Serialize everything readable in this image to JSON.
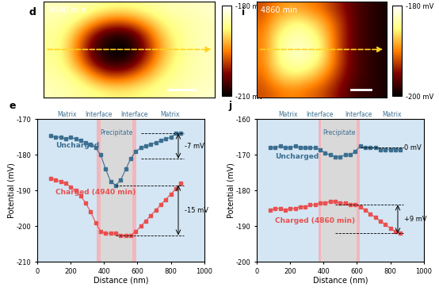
{
  "chart_data": [
    {
      "type": "heatmap",
      "panel": "d",
      "title": "4940 min",
      "tick_labels": false,
      "cells": [
        [
          -184,
          -184,
          -185,
          -186,
          -187,
          -187,
          -186,
          -185,
          -184,
          -184,
          -183
        ],
        [
          -185,
          -186,
          -189,
          -194,
          -197,
          -196,
          -192,
          -188,
          -186,
          -185,
          -184
        ],
        [
          -186,
          -188,
          -196,
          -205,
          -209,
          -208,
          -200,
          -191,
          -187,
          -185,
          -184
        ],
        [
          -186,
          -189,
          -199,
          -208,
          -210,
          -210,
          -203,
          -193,
          -188,
          -185,
          -184
        ],
        [
          -186,
          -188,
          -196,
          -205,
          -209,
          -207,
          -199,
          -191,
          -187,
          -185,
          -184
        ],
        [
          -185,
          -186,
          -189,
          -195,
          -198,
          -196,
          -192,
          -188,
          -186,
          -185,
          -184
        ],
        [
          -184,
          -185,
          -186,
          -187,
          -188,
          -188,
          -187,
          -186,
          -185,
          -184,
          -183
        ]
      ],
      "colorbar": {
        "range": [
          -210,
          -180
        ],
        "ticks": [
          {
            "value": -180,
            "label": "-180 mV"
          },
          {
            "value": -210,
            "label": "-210 mV"
          }
        ]
      }
    },
    {
      "type": "heatmap",
      "panel": "i",
      "title": "4860 min",
      "tick_labels": false,
      "cells": [
        [
          -192,
          -190,
          -189,
          -189,
          -190,
          -191,
          -193,
          -195,
          -197,
          -198,
          -199
        ],
        [
          -191,
          -188,
          -186,
          -185,
          -186,
          -188,
          -191,
          -194,
          -197,
          -198,
          -199
        ],
        [
          -190,
          -186,
          -184,
          -183,
          -184,
          -186,
          -190,
          -194,
          -197,
          -198,
          -199
        ],
        [
          -190,
          -186,
          -183,
          -182,
          -183,
          -185,
          -190,
          -194,
          -197,
          -198,
          -199
        ],
        [
          -190,
          -186,
          -184,
          -183,
          -184,
          -186,
          -190,
          -194,
          -197,
          -198,
          -199
        ],
        [
          -191,
          -188,
          -186,
          -186,
          -187,
          -189,
          -192,
          -195,
          -197,
          -198,
          -199
        ],
        [
          -192,
          -191,
          -190,
          -190,
          -191,
          -192,
          -194,
          -196,
          -198,
          -198,
          -199
        ]
      ],
      "colorbar": {
        "range": [
          -200,
          -180
        ],
        "ticks": [
          {
            "value": -180,
            "label": "-180 mV"
          },
          {
            "value": -200,
            "label": "-200 mV"
          }
        ]
      }
    },
    {
      "type": "line",
      "panel": "e",
      "x_label": "Distance (nm)",
      "y_label": "Potential (mV)",
      "xlim": [
        0,
        1000
      ],
      "xticks": [
        0,
        200,
        400,
        600,
        800,
        1000
      ],
      "ylim": [
        -210,
        -170
      ],
      "yticks": [
        -210,
        -200,
        -190,
        -180,
        -170
      ],
      "regions": [
        {
          "name": "Matrix",
          "range": [
            0,
            355
          ]
        },
        {
          "name": "Interface",
          "range": [
            355,
            380
          ]
        },
        {
          "name": "Precipitate",
          "range": [
            380,
            570
          ]
        },
        {
          "name": "Interface",
          "range": [
            570,
            595
          ]
        },
        {
          "name": "Matrix",
          "range": [
            595,
            1000
          ]
        }
      ],
      "x": [
        80,
        110,
        140,
        170,
        200,
        230,
        260,
        290,
        320,
        350,
        380,
        410,
        440,
        470,
        500,
        530,
        560,
        590,
        620,
        650,
        680,
        710,
        740,
        770,
        800,
        830,
        860
      ],
      "series": [
        {
          "name": "Uncharged",
          "color": "#3b6f91",
          "marker": "s",
          "values": [
            -174.5,
            -175,
            -175,
            -175.5,
            -175,
            -175.5,
            -176,
            -176.5,
            -177,
            -178,
            -180,
            -184,
            -187.5,
            -188.5,
            -187,
            -184,
            -181,
            -179,
            -178,
            -177.5,
            -177,
            -176.5,
            -176,
            -175.5,
            -175,
            -174,
            -174
          ],
          "difference": {
            "text": "-7 mV",
            "from": -174,
            "to": -181
          }
        },
        {
          "name": "Charged (4940 min)",
          "color": "#e8504f",
          "marker": "s",
          "values": [
            -186.5,
            -187,
            -187.5,
            -188,
            -189,
            -190,
            -191.5,
            -193.5,
            -196,
            -199,
            -201.5,
            -202,
            -202,
            -202,
            -202.5,
            -202.5,
            -202.5,
            -201.5,
            -200,
            -198.5,
            -197,
            -195.5,
            -194,
            -192.5,
            -191,
            -189.5,
            -188
          ],
          "difference": {
            "text": "-15 mV",
            "from": -188.5,
            "to": -202.5
          }
        }
      ]
    },
    {
      "type": "line",
      "panel": "j",
      "x_label": "Distance (nm)",
      "y_label": "Potential (mV)",
      "xlim": [
        0,
        1000
      ],
      "xticks": [
        0,
        200,
        400,
        600,
        800,
        1000
      ],
      "ylim": [
        -200,
        -160
      ],
      "yticks": [
        -200,
        -190,
        -180,
        -170,
        -160
      ],
      "regions": [
        {
          "name": "Matrix",
          "range": [
            0,
            370
          ]
        },
        {
          "name": "Interface",
          "range": [
            370,
            385
          ]
        },
        {
          "name": "Precipitate",
          "range": [
            385,
            600
          ]
        },
        {
          "name": "Interface",
          "range": [
            600,
            615
          ]
        },
        {
          "name": "Matrix",
          "range": [
            615,
            1000
          ]
        }
      ],
      "x": [
        80,
        110,
        140,
        170,
        200,
        230,
        260,
        290,
        320,
        350,
        380,
        410,
        440,
        470,
        500,
        530,
        560,
        590,
        620,
        650,
        680,
        710,
        740,
        770,
        800,
        830,
        860
      ],
      "series": [
        {
          "name": "Uncharged",
          "color": "#3b6f91",
          "marker": "s",
          "values": [
            -168,
            -168,
            -167.5,
            -168,
            -168,
            -167.5,
            -168,
            -168,
            -168,
            -168,
            -168.5,
            -169.5,
            -170,
            -170.5,
            -170.5,
            -170,
            -170,
            -169,
            -167.5,
            -168,
            -168,
            -168,
            -168.5,
            -168.5,
            -168.5,
            -168.5,
            -168.5
          ],
          "difference": {
            "text": "0 mV",
            "from": -168,
            "to": -168
          }
        },
        {
          "name": "Charged (4860 min)",
          "color": "#e8504f",
          "marker": "s",
          "values": [
            -185.5,
            -185,
            -185,
            -185.5,
            -185,
            -185,
            -184.5,
            -184.5,
            -184,
            -184,
            -183.5,
            -183.5,
            -183,
            -183,
            -183.5,
            -183.5,
            -184,
            -184,
            -184.5,
            -185.5,
            -186.5,
            -187.5,
            -188.5,
            -189.5,
            -190.5,
            -191.5,
            -192
          ],
          "difference": {
            "text": "+9 mV",
            "from": -184,
            "to": -192
          }
        }
      ]
    }
  ]
}
